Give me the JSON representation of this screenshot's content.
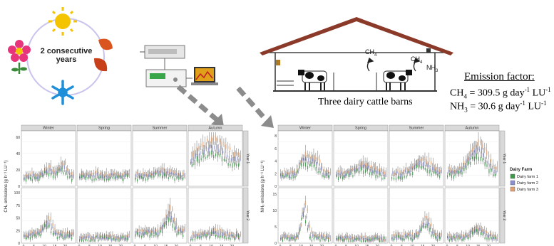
{
  "cycle": {
    "label_line1": "2 consecutive",
    "label_line2": "years"
  },
  "barn": {
    "caption": "Three dairy cattle barns",
    "gas1": "CH",
    "gas1_sub": "4",
    "gas2": "CH",
    "gas2_sub": "4",
    "gas3": "NH",
    "gas3_sub": "3"
  },
  "emission_factor": {
    "title": "Emission factor:",
    "ch4_prefix": "CH",
    "ch4_sub": "4",
    "ch4_text": " = 309.5 g day",
    "ch4_exp": "-1",
    "ch4_unit": " LU",
    "ch4_unit_exp": "-1",
    "nh3_prefix": "NH",
    "nh3_sub": "3",
    "nh3_text": " = 30.6 g day",
    "nh3_exp": "-1",
    "nh3_unit": " LU",
    "nh3_unit_exp": "-1"
  },
  "seasons": [
    "Winter",
    "Spring",
    "Summer",
    "Autumn"
  ],
  "years": [
    "Year 1",
    "Year 2"
  ],
  "ch4_panel": {
    "ylabel": "CH₄ emissions (g h⁻¹ LU⁻¹)",
    "yticks_top": [
      "0",
      "20",
      "40",
      "60"
    ],
    "yticks_bottom": [
      "0",
      "25",
      "50",
      "75",
      "100"
    ]
  },
  "nh3_panel": {
    "ylabel": "NH₃ emissions (g h⁻¹ LU⁻¹)",
    "xlabel": "Hour",
    "yticks_top": [
      "0",
      "2",
      "4",
      "6",
      "8"
    ],
    "yticks_bottom": [
      "0",
      "5",
      "10",
      "15"
    ]
  },
  "xticks": [
    "0",
    "5",
    "10",
    "15",
    "20"
  ],
  "legend": {
    "title": "Dairy Farm",
    "items": [
      "Dairy farm 1",
      "Dairy farm 2",
      "Dairy farm 3"
    ]
  },
  "colors": {
    "farm1": "#3c9a4a",
    "farm2": "#8a8fd0",
    "farm3": "#e0a070",
    "strip": "#d9d9d9",
    "arrow": "#8c8c8c",
    "roof": "#8b3a2a"
  }
}
